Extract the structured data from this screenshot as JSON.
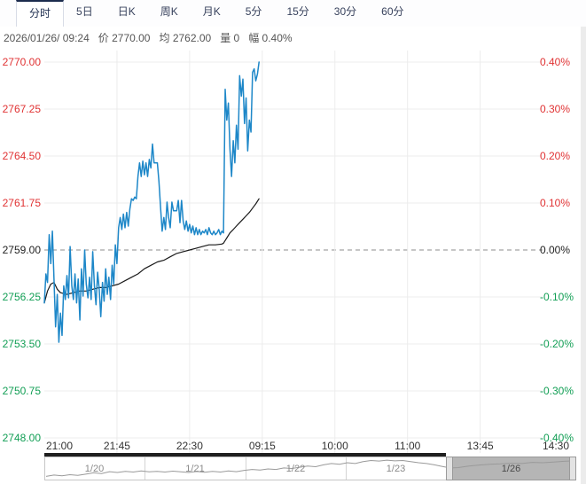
{
  "tabs": [
    {
      "key": "timeshare",
      "label": "分时",
      "active": true
    },
    {
      "key": "5day",
      "label": "5日",
      "active": false
    },
    {
      "key": "daily-k",
      "label": "日K",
      "active": false
    },
    {
      "key": "weekly-k",
      "label": "周K",
      "active": false
    },
    {
      "key": "monthly-k",
      "label": "月K",
      "active": false
    },
    {
      "key": "5min",
      "label": "5分",
      "active": false
    },
    {
      "key": "15min",
      "label": "15分",
      "active": false
    },
    {
      "key": "30min",
      "label": "30分",
      "active": false
    },
    {
      "key": "60min",
      "label": "60分",
      "active": false
    }
  ],
  "info_bar": {
    "parts": [
      {
        "key": "datetime",
        "text": "2026/01/26/  09:24"
      },
      {
        "key": "price",
        "text": "价 2770.00"
      },
      {
        "key": "average",
        "text": "均 2762.00"
      },
      {
        "key": "volume",
        "text": "量 0"
      },
      {
        "key": "change",
        "text": "幅 0.40%"
      }
    ]
  },
  "chart_data": {
    "type": "line",
    "title": "",
    "prev_close": 2759.0,
    "current_price": 2770.0,
    "current_average": 2762.0,
    "change_pct": "0.40%",
    "y_ticks": [
      {
        "price": 2770.0,
        "price_label": "2770.00",
        "pct_label": "0.40%",
        "tone": "up"
      },
      {
        "price": 2767.25,
        "price_label": "2767.25",
        "pct_label": "0.30%",
        "tone": "up"
      },
      {
        "price": 2764.5,
        "price_label": "2764.50",
        "pct_label": "0.20%",
        "tone": "up"
      },
      {
        "price": 2761.75,
        "price_label": "2761.75",
        "pct_label": "0.10%",
        "tone": "up"
      },
      {
        "price": 2759.0,
        "price_label": "2759.00",
        "pct_label": "0.00%",
        "tone": "flat"
      },
      {
        "price": 2756.25,
        "price_label": "2756.25",
        "pct_label": "-0.10%",
        "tone": "down"
      },
      {
        "price": 2753.5,
        "price_label": "2753.50",
        "pct_label": "-0.20%",
        "tone": "down"
      },
      {
        "price": 2750.75,
        "price_label": "2750.75",
        "pct_label": "-0.30%",
        "tone": "down"
      },
      {
        "price": 2748.0,
        "price_label": "2748.00",
        "pct_label": "-0.40%",
        "tone": "down"
      }
    ],
    "x_ticks": [
      {
        "label": "21:00",
        "min": 0
      },
      {
        "label": "21:45",
        "min": 45
      },
      {
        "label": "22:30",
        "min": 90
      },
      {
        "label": "09:15",
        "min": 135
      },
      {
        "label": "10:00",
        "min": 180
      },
      {
        "label": "11:00",
        "min": 225
      },
      {
        "label": "13:45",
        "min": 270
      },
      {
        "label": "14:30",
        "min": 315
      }
    ],
    "session_total_minutes": 324,
    "ylim": [
      2748.0,
      2770.0
    ],
    "grid": true,
    "series": [
      {
        "name": "price",
        "color": "#1d87c8",
        "width": 1.5,
        "points": [
          [
            0,
            2755.9
          ],
          [
            1,
            2757.6
          ],
          [
            2,
            2757.1
          ],
          [
            3,
            2759.9
          ],
          [
            4,
            2758.2
          ],
          [
            5,
            2760.1
          ],
          [
            6,
            2757.3
          ],
          [
            7,
            2754.5
          ],
          [
            8,
            2756.4
          ],
          [
            9,
            2753.6
          ],
          [
            10,
            2755.3
          ],
          [
            11,
            2754.0
          ],
          [
            12,
            2756.9
          ],
          [
            13,
            2756.1
          ],
          [
            14,
            2757.5
          ],
          [
            15,
            2756.2
          ],
          [
            16,
            2759.2
          ],
          [
            17,
            2756.9
          ],
          [
            18,
            2756.1
          ],
          [
            19,
            2757.6
          ],
          [
            20,
            2755.9
          ],
          [
            21,
            2757.3
          ],
          [
            22,
            2754.9
          ],
          [
            23,
            2757.9
          ],
          [
            24,
            2756.3
          ],
          [
            25,
            2759.0
          ],
          [
            26,
            2757.0
          ],
          [
            27,
            2756.2
          ],
          [
            28,
            2757.4
          ],
          [
            29,
            2756.1
          ],
          [
            30,
            2758.9
          ],
          [
            31,
            2756.9
          ],
          [
            32,
            2755.8
          ],
          [
            33,
            2757.7
          ],
          [
            34,
            2756.7
          ],
          [
            35,
            2755.1
          ],
          [
            36,
            2757.1
          ],
          [
            37,
            2756.0
          ],
          [
            38,
            2757.9
          ],
          [
            39,
            2756.4
          ],
          [
            40,
            2757.4
          ],
          [
            41,
            2756.1
          ],
          [
            42,
            2758.1
          ],
          [
            43,
            2757.0
          ],
          [
            44,
            2759.3
          ],
          [
            45,
            2758.2
          ],
          [
            46,
            2760.3
          ],
          [
            47,
            2760.9
          ],
          [
            48,
            2760.2
          ],
          [
            49,
            2761.1
          ],
          [
            50,
            2760.3
          ],
          [
            51,
            2761.2
          ],
          [
            52,
            2760.4
          ],
          [
            53,
            2761.4
          ],
          [
            54,
            2762.0
          ],
          [
            55,
            2761.9
          ],
          [
            56,
            2762.1
          ],
          [
            57,
            2762.0
          ],
          [
            58,
            2763.3
          ],
          [
            59,
            2764.1
          ],
          [
            60,
            2763.3
          ],
          [
            61,
            2764.2
          ],
          [
            62,
            2763.4
          ],
          [
            63,
            2764.1
          ],
          [
            64,
            2763.3
          ],
          [
            65,
            2764.3
          ],
          [
            66,
            2763.8
          ],
          [
            67,
            2765.2
          ],
          [
            68,
            2764.1
          ],
          [
            69,
            2764.1
          ],
          [
            70,
            2764.1
          ],
          [
            71,
            2763.0
          ],
          [
            72,
            2761.5
          ],
          [
            73,
            2760.1
          ],
          [
            74,
            2760.9
          ],
          [
            75,
            2760.2
          ],
          [
            76,
            2761.8
          ],
          [
            77,
            2760.9
          ],
          [
            78,
            2760.3
          ],
          [
            79,
            2761.8
          ],
          [
            80,
            2761.3
          ],
          [
            81,
            2761.3
          ],
          [
            82,
            2761.3
          ],
          [
            83,
            2761.9
          ],
          [
            84,
            2760.6
          ],
          [
            85,
            2761.9
          ],
          [
            86,
            2760.7
          ],
          [
            87,
            2760.2
          ],
          [
            88,
            2760.7
          ],
          [
            89,
            2760.1
          ],
          [
            90,
            2760.5
          ],
          [
            91,
            2760.0
          ],
          [
            92,
            2760.4
          ],
          [
            93,
            2759.9
          ],
          [
            94,
            2760.3
          ],
          [
            95,
            2759.9
          ],
          [
            96,
            2760.2
          ],
          [
            97,
            2759.9
          ],
          [
            98,
            2760.1
          ],
          [
            99,
            2760.0
          ],
          [
            100,
            2760.2
          ],
          [
            101,
            2759.9
          ],
          [
            102,
            2760.3
          ],
          [
            103,
            2760.0
          ],
          [
            104,
            2759.9
          ],
          [
            105,
            2760.1
          ],
          [
            106,
            2759.9
          ],
          [
            107,
            2760.0
          ],
          [
            108,
            2760.2
          ],
          [
            109,
            2759.9
          ],
          [
            110,
            2760.1
          ],
          [
            111,
            2760.0
          ],
          [
            112,
            2768.4
          ],
          [
            113,
            2766.6
          ],
          [
            114,
            2767.6
          ],
          [
            115,
            2764.9
          ],
          [
            116,
            2763.3
          ],
          [
            117,
            2765.4
          ],
          [
            118,
            2764.1
          ],
          [
            119,
            2766.3
          ],
          [
            120,
            2764.9
          ],
          [
            121,
            2769.2
          ],
          [
            122,
            2768.0
          ],
          [
            123,
            2769.0
          ],
          [
            124,
            2766.4
          ],
          [
            125,
            2767.9
          ],
          [
            126,
            2764.8
          ],
          [
            127,
            2766.6
          ],
          [
            128,
            2765.9
          ],
          [
            129,
            2769.4
          ],
          [
            130,
            2769.6
          ],
          [
            131,
            2768.9
          ],
          [
            132,
            2769.3
          ],
          [
            133,
            2770.0
          ]
        ]
      },
      {
        "name": "average",
        "color": "#1a1a1a",
        "width": 1.2,
        "points": [
          [
            0,
            2755.9
          ],
          [
            2,
            2756.6
          ],
          [
            4,
            2757.0
          ],
          [
            6,
            2757.1
          ],
          [
            8,
            2756.7
          ],
          [
            10,
            2756.5
          ],
          [
            14,
            2756.4
          ],
          [
            18,
            2756.5
          ],
          [
            22,
            2756.6
          ],
          [
            26,
            2756.6
          ],
          [
            30,
            2756.7
          ],
          [
            34,
            2756.8
          ],
          [
            38,
            2756.8
          ],
          [
            42,
            2756.9
          ],
          [
            46,
            2757.0
          ],
          [
            50,
            2757.2
          ],
          [
            54,
            2757.4
          ],
          [
            58,
            2757.6
          ],
          [
            62,
            2757.9
          ],
          [
            66,
            2758.1
          ],
          [
            70,
            2758.3
          ],
          [
            74,
            2758.4
          ],
          [
            78,
            2758.6
          ],
          [
            82,
            2758.8
          ],
          [
            86,
            2758.9
          ],
          [
            90,
            2759.0
          ],
          [
            94,
            2759.1
          ],
          [
            98,
            2759.2
          ],
          [
            102,
            2759.3
          ],
          [
            106,
            2759.3
          ],
          [
            110,
            2759.35
          ],
          [
            111,
            2759.4
          ],
          [
            113,
            2759.7
          ],
          [
            115,
            2760.0
          ],
          [
            117,
            2760.2
          ],
          [
            119,
            2760.4
          ],
          [
            121,
            2760.6
          ],
          [
            123,
            2760.8
          ],
          [
            125,
            2761.0
          ],
          [
            127,
            2761.2
          ],
          [
            129,
            2761.45
          ],
          [
            131,
            2761.7
          ],
          [
            133,
            2762.0
          ]
        ]
      }
    ]
  },
  "navigator": {
    "segments": [
      {
        "key": "1-20",
        "label": "1/20",
        "selected": false
      },
      {
        "key": "1-21",
        "label": "1/21",
        "selected": false
      },
      {
        "key": "1-22",
        "label": "1/22",
        "selected": false
      },
      {
        "key": "1-23",
        "label": "1/23",
        "selected": false
      },
      {
        "key": "1-26",
        "label": "1/26",
        "selected": true
      }
    ],
    "sparkline": [
      [
        0,
        0.97
      ],
      [
        0.015,
        0.9
      ],
      [
        0.03,
        0.94
      ],
      [
        0.045,
        0.88
      ],
      [
        0.06,
        0.92
      ],
      [
        0.075,
        0.85
      ],
      [
        0.09,
        0.78
      ],
      [
        0.105,
        0.82
      ],
      [
        0.12,
        0.72
      ],
      [
        0.135,
        0.76
      ],
      [
        0.15,
        0.7
      ],
      [
        0.165,
        0.74
      ],
      [
        0.18,
        0.68
      ],
      [
        0.195,
        0.73
      ],
      [
        0.21,
        0.7
      ],
      [
        0.225,
        0.74
      ],
      [
        0.24,
        0.69
      ],
      [
        0.255,
        0.73
      ],
      [
        0.27,
        0.76
      ],
      [
        0.285,
        0.71
      ],
      [
        0.3,
        0.75
      ],
      [
        0.315,
        0.7
      ],
      [
        0.33,
        0.74
      ],
      [
        0.345,
        0.68
      ],
      [
        0.36,
        0.72
      ],
      [
        0.375,
        0.65
      ],
      [
        0.39,
        0.6
      ],
      [
        0.405,
        0.63
      ],
      [
        0.42,
        0.57
      ],
      [
        0.435,
        0.6
      ],
      [
        0.45,
        0.52
      ],
      [
        0.465,
        0.55
      ],
      [
        0.48,
        0.48
      ],
      [
        0.495,
        0.42
      ],
      [
        0.51,
        0.45
      ],
      [
        0.525,
        0.35
      ],
      [
        0.54,
        0.28
      ],
      [
        0.555,
        0.32
      ],
      [
        0.57,
        0.24
      ],
      [
        0.585,
        0.28
      ],
      [
        0.6,
        0.18
      ],
      [
        0.615,
        0.12
      ],
      [
        0.63,
        0.15
      ],
      [
        0.645,
        0.1
      ],
      [
        0.66,
        0.14
      ],
      [
        0.675,
        0.12
      ],
      [
        0.69,
        0.18
      ],
      [
        0.705,
        0.24
      ],
      [
        0.72,
        0.28
      ],
      [
        0.735,
        0.35
      ],
      [
        0.75,
        0.44
      ],
      [
        0.765,
        0.52
      ],
      [
        0.78,
        0.5
      ],
      [
        0.8,
        0.42
      ],
      [
        0.82,
        0.36
      ],
      [
        0.84,
        0.32
      ],
      [
        0.86,
        0.3
      ],
      [
        0.88,
        0.26
      ],
      [
        0.9,
        0.28
      ],
      [
        0.92,
        0.22
      ],
      [
        0.94,
        0.24
      ],
      [
        0.96,
        0.2
      ],
      [
        0.98,
        0.16
      ],
      [
        1.0,
        0.14
      ]
    ]
  },
  "colors": {
    "up": "#e03233",
    "down": "#119e54",
    "flat": "#222222",
    "price_line": "#1d87c8",
    "avg_line": "#1a1a1a",
    "grid": "#ececec",
    "baseline_dash": "#8c8c8c",
    "tab_accent": "#1b2b4d",
    "nav_selected_fill": "#b5b5b5",
    "nav_handle_fill": "#e3e3e3",
    "sparkline": "#9a9a9a"
  }
}
